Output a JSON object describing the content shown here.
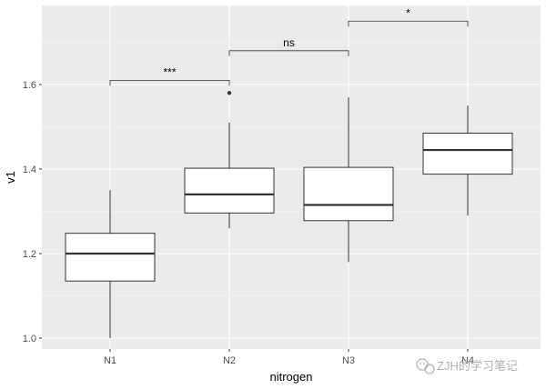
{
  "chart_data": {
    "type": "boxplot",
    "title": "",
    "xlabel": "nitrogen",
    "ylabel": "v1",
    "ylim": [
      0.97,
      1.77
    ],
    "yticks": [
      1.0,
      1.2,
      1.4,
      1.6
    ],
    "ytick_labels": [
      "1.0",
      "1.2",
      "1.4",
      "1.6"
    ],
    "categories": [
      "N1",
      "N2",
      "N3",
      "N4"
    ],
    "boxes": [
      {
        "category": "N1",
        "whisker_low": 1.0,
        "q1": 1.135,
        "median": 1.2,
        "q3": 1.248,
        "whisker_high": 1.35,
        "outliers": []
      },
      {
        "category": "N2",
        "whisker_low": 1.26,
        "q1": 1.296,
        "median": 1.34,
        "q3": 1.402,
        "whisker_high": 1.51,
        "outliers": [
          1.58
        ]
      },
      {
        "category": "N3",
        "whisker_low": 1.18,
        "q1": 1.278,
        "median": 1.315,
        "q3": 1.404,
        "whisker_high": 1.57,
        "outliers": []
      },
      {
        "category": "N4",
        "whisker_low": 1.29,
        "q1": 1.388,
        "median": 1.445,
        "q3": 1.485,
        "whisker_high": 1.55,
        "outliers": []
      }
    ],
    "comparisons": [
      {
        "from": "N1",
        "to": "N2",
        "label": "***",
        "y": 1.61
      },
      {
        "from": "N2",
        "to": "N3",
        "label": "ns",
        "y": 1.68
      },
      {
        "from": "N3",
        "to": "N4",
        "label": "*",
        "y": 1.75
      }
    ],
    "grid": true,
    "background": "#ebebeb",
    "gridline_color": "#ffffff"
  },
  "watermark": {
    "text": "ZJH的学习笔记",
    "icon": "wechat-icon",
    "color": "#b0b0b0"
  }
}
